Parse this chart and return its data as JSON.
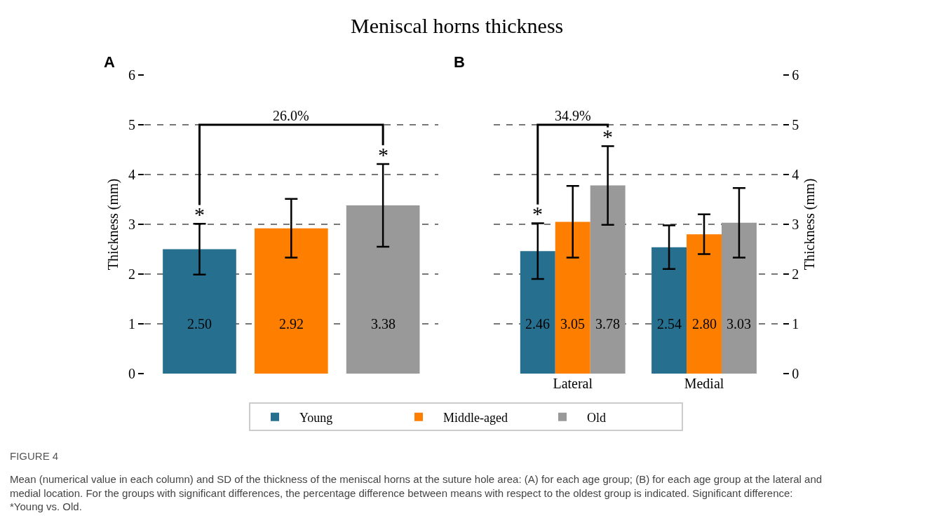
{
  "chart_data": [
    {
      "type": "bar",
      "title": "Meniscal horns thickness",
      "subtitle": "A",
      "ylabel": "Thickness (mm)",
      "categories": [
        null,
        null,
        null
      ],
      "values": [
        2.5,
        2.92,
        3.38
      ],
      "colors": [
        "#276f8f",
        "#fe7f00",
        "#999999"
      ],
      "errors": [
        0.51,
        0.59,
        0.83
      ],
      "value_labels": [
        "2.50",
        "2.92",
        "3.38"
      ],
      "ylim": [
        0,
        6
      ],
      "yticks": [
        0,
        1,
        2,
        3,
        4,
        5,
        6
      ],
      "grid": "y",
      "tick_labels": "y",
      "annotations": [
        "*",
        "*",
        "26.0%"
      ]
    },
    {
      "type": "bar",
      "subtitle": "B",
      "ylabel": "Thickness (mm)",
      "categories": [
        "Lateral",
        "Medial"
      ],
      "series": [
        {
          "name": "Young",
          "color": "#276f8f",
          "values": [
            2.46,
            2.54
          ],
          "errors": [
            0.56,
            0.44
          ],
          "value_labels": [
            "2.46",
            "2.54"
          ]
        },
        {
          "name": "Middle-aged",
          "color": "#fe7f00",
          "values": [
            3.05,
            2.8
          ],
          "errors": [
            0.72,
            0.4
          ],
          "value_labels": [
            "3.05",
            "2.80"
          ]
        },
        {
          "name": "Old",
          "color": "#999999",
          "values": [
            3.78,
            3.03
          ],
          "errors": [
            0.79,
            0.7
          ],
          "value_labels": [
            "3.78",
            "3.03"
          ]
        }
      ],
      "ylim": [
        0,
        6
      ],
      "yticks": [
        0,
        1,
        2,
        3,
        4,
        5,
        6
      ],
      "grid": "y",
      "legend": "bottom",
      "annotations": [
        "*",
        "*",
        "34.9%",
        "FIGURE 4",
        "Mean (numerical value in each column) and SD of the thickness of the meniscal horns at the suture hole area: (A) for each age group; (B) for each age group at the lateral and medial location. For the groups with significant differences, the percentage difference between means with respect to the oldest group is indicated. Significant difference: *Young vs. Old."
      ]
    }
  ]
}
